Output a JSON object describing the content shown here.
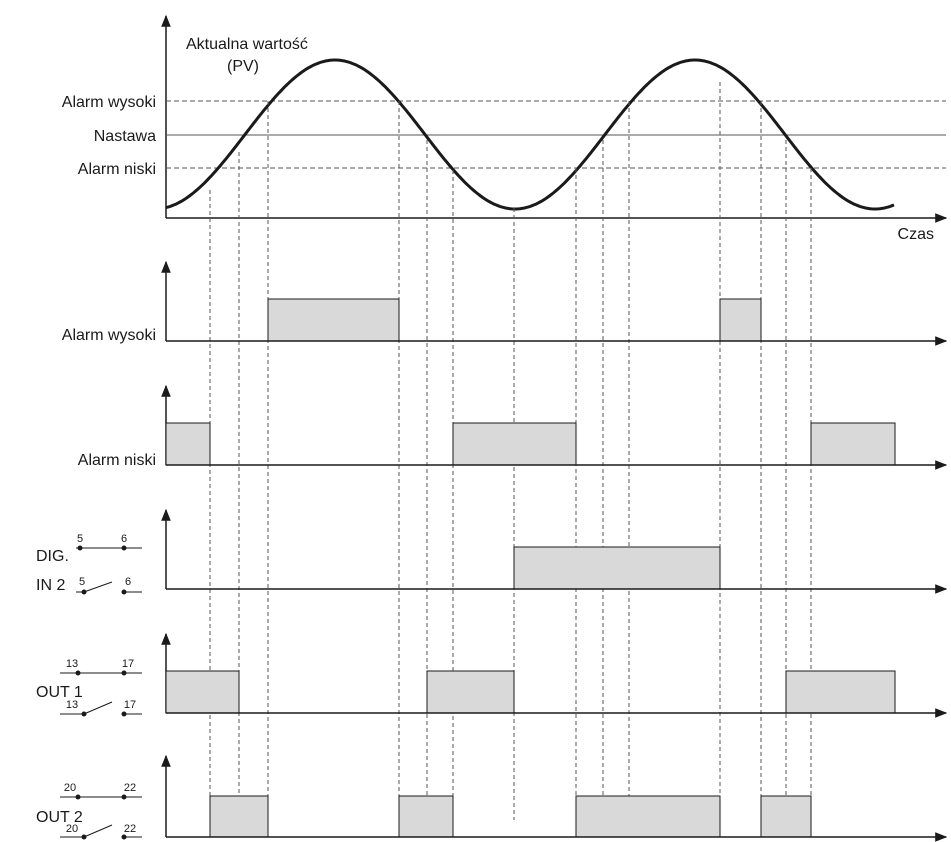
{
  "top_plot": {
    "curve_label": "Aktualna wartość",
    "curve_label_sub": "(PV)",
    "x_label": "Czas",
    "levels": {
      "alarm_high": "Alarm wysoki",
      "setpoint": "Nastawa",
      "alarm_low": "Alarm niski"
    }
  },
  "tracks": {
    "alarm_high": {
      "label": "Alarm wysoki"
    },
    "alarm_low": {
      "label": "Alarm niski"
    },
    "dig_in2": {
      "label_line1": "DIG.",
      "label_line2": "IN 2",
      "pin_a": "5",
      "pin_b": "6"
    },
    "out1": {
      "label": "OUT 1",
      "pin_a": "13",
      "pin_b": "17"
    },
    "out2": {
      "label": "OUT 2",
      "pin_a": "20",
      "pin_b": "22"
    }
  },
  "colors": {
    "pulse_fill": "#d9d9d9",
    "line": "#1a1a1a",
    "guide": "#555555"
  }
}
